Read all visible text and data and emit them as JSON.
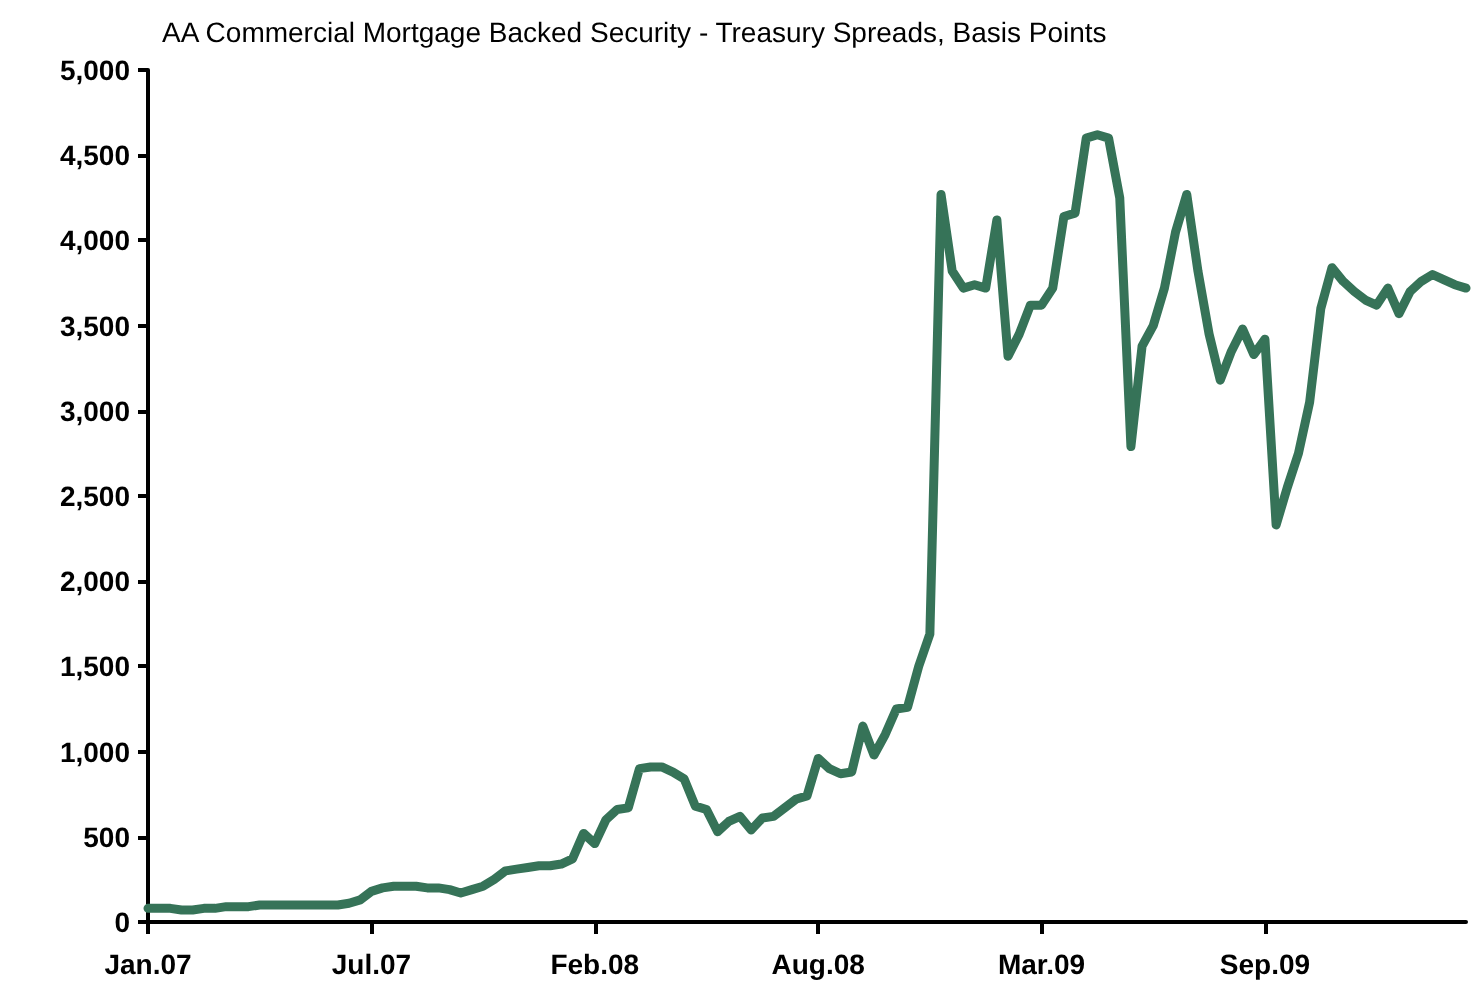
{
  "chart_data": {
    "type": "line",
    "title": "AA Commercial Mortgage Backed Security - Treasury Spreads, Basis Points",
    "categories": [
      "Jan.07",
      null,
      null,
      null,
      null,
      null,
      null,
      null,
      null,
      null,
      null,
      null,
      null,
      null,
      null,
      null,
      null,
      null,
      null,
      null,
      "Jul.07",
      null,
      null,
      null,
      null,
      null,
      null,
      null,
      null,
      null,
      null,
      null,
      null,
      null,
      null,
      null,
      null,
      null,
      null,
      null,
      "Feb.08",
      null,
      null,
      null,
      null,
      null,
      null,
      null,
      null,
      null,
      null,
      null,
      null,
      null,
      null,
      null,
      null,
      null,
      null,
      null,
      "Aug.08",
      null,
      null,
      null,
      null,
      null,
      null,
      null,
      null,
      null,
      null,
      null,
      null,
      null,
      null,
      null,
      null,
      null,
      null,
      null,
      "Mar.09",
      null,
      null,
      null,
      null,
      null,
      null,
      null,
      null,
      null,
      null,
      null,
      null,
      null,
      null,
      null,
      null,
      null,
      null,
      null,
      "Sep.09",
      null,
      null,
      null,
      null,
      null,
      null,
      null,
      null,
      null,
      null,
      null,
      null,
      null,
      null,
      null,
      null,
      null,
      null
    ],
    "series": [
      {
        "color": "#367358",
        "values": [
          80,
          80,
          80,
          70,
          70,
          80,
          80,
          90,
          90,
          90,
          100,
          100,
          100,
          100,
          100,
          100,
          100,
          100,
          110,
          130,
          180,
          200,
          210,
          210,
          210,
          200,
          200,
          190,
          170,
          190,
          210,
          250,
          300,
          310,
          320,
          330,
          330,
          340,
          370,
          520,
          460,
          600,
          660,
          670,
          900,
          910,
          910,
          880,
          840,
          680,
          660,
          530,
          590,
          620,
          540,
          610,
          620,
          670,
          720,
          740,
          960,
          900,
          870,
          880,
          1150,
          980,
          1100,
          1250,
          1260,
          1500,
          1690,
          4270,
          3820,
          3720,
          3740,
          3720,
          4120,
          3320,
          3450,
          3620,
          3620,
          3720,
          4140,
          4160,
          4600,
          4620,
          4600,
          4250,
          2790,
          3380,
          3500,
          3720,
          4050,
          4270,
          3820,
          3450,
          3180,
          3350,
          3480,
          3330,
          3420,
          2330,
          2550,
          2750,
          3050,
          3600,
          3840,
          3760,
          3700,
          3650,
          3620,
          3720,
          3570,
          3700,
          3760,
          3800,
          3770,
          3740,
          3720
        ]
      }
    ],
    "ylim": [
      0,
      5000
    ],
    "yticks": [
      0,
      500,
      {
        "value": 1000,
        "label": "1,000"
      },
      {
        "value": 1500,
        "label": "1,500"
      },
      {
        "value": 2000,
        "label": "2,000"
      },
      {
        "value": 2500,
        "label": "2,500"
      },
      {
        "value": 3000,
        "label": "3,000"
      },
      {
        "value": 3500,
        "label": "3,500"
      },
      {
        "value": 4000,
        "label": "4,000"
      },
      {
        "value": 4500,
        "label": "4,500"
      },
      {
        "value": 5000,
        "label": "5,000"
      }
    ],
    "grid": false,
    "marker": "none",
    "line_style": "solid"
  }
}
